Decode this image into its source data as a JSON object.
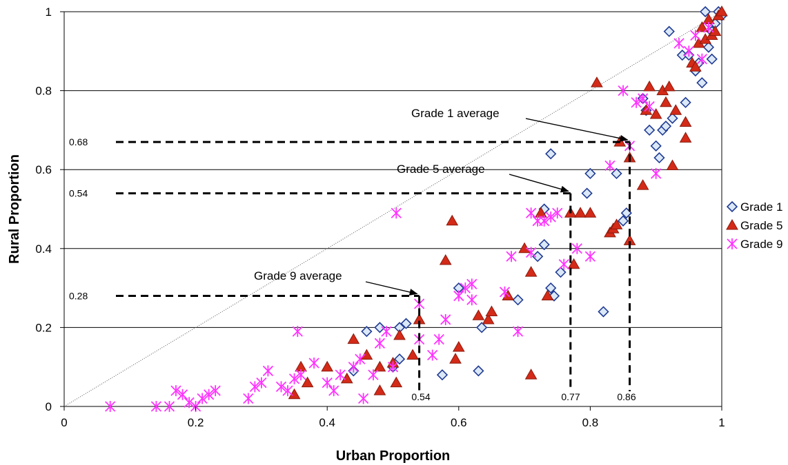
{
  "chart_data": {
    "type": "scatter",
    "xlabel": "Urban Proportion",
    "ylabel": "Rural Proportion",
    "xlim": [
      0,
      1
    ],
    "ylim": [
      0,
      1
    ],
    "xticks": [
      "0",
      "0.2",
      "0.4",
      "0.6",
      "0.8",
      "1"
    ],
    "yticks": [
      "0",
      "0.2",
      "0.4",
      "0.6",
      "0.8",
      "1"
    ],
    "grid": "horizontal",
    "legend_position": "right",
    "diagonal_reference": true,
    "colors": {
      "grade1_edge": "#1f3a93",
      "grade1_fill": "#dbe8f7",
      "grade5_fill": "#d42a18",
      "grade5_edge": "#8b1a0c",
      "grade9": "#ff33ff"
    },
    "series": [
      {
        "name": "Grade 1",
        "marker": "diamond",
        "points": [
          [
            0.44,
            0.09
          ],
          [
            0.46,
            0.19
          ],
          [
            0.48,
            0.2
          ],
          [
            0.51,
            0.2
          ],
          [
            0.52,
            0.21
          ],
          [
            0.5,
            0.1
          ],
          [
            0.51,
            0.12
          ],
          [
            0.575,
            0.08
          ],
          [
            0.6,
            0.3
          ],
          [
            0.635,
            0.2
          ],
          [
            0.63,
            0.09
          ],
          [
            0.69,
            0.27
          ],
          [
            0.72,
            0.38
          ],
          [
            0.73,
            0.41
          ],
          [
            0.73,
            0.5
          ],
          [
            0.74,
            0.3
          ],
          [
            0.745,
            0.28
          ],
          [
            0.755,
            0.34
          ],
          [
            0.74,
            0.64
          ],
          [
            0.795,
            0.54
          ],
          [
            0.8,
            0.59
          ],
          [
            0.82,
            0.24
          ],
          [
            0.84,
            0.59
          ],
          [
            0.85,
            0.47
          ],
          [
            0.855,
            0.49
          ],
          [
            0.88,
            0.78
          ],
          [
            0.885,
            0.75
          ],
          [
            0.89,
            0.7
          ],
          [
            0.9,
            0.66
          ],
          [
            0.905,
            0.63
          ],
          [
            0.91,
            0.7
          ],
          [
            0.915,
            0.71
          ],
          [
            0.925,
            0.73
          ],
          [
            0.92,
            0.95
          ],
          [
            0.945,
            0.77
          ],
          [
            0.94,
            0.89
          ],
          [
            0.95,
            0.89
          ],
          [
            0.96,
            0.85
          ],
          [
            0.965,
            0.87
          ],
          [
            0.97,
            0.82
          ],
          [
            0.975,
            1.0
          ],
          [
            0.98,
            0.91
          ],
          [
            0.985,
            0.88
          ],
          [
            0.99,
            0.97
          ],
          [
            0.995,
            1.0
          ],
          [
            1.0,
            0.99
          ],
          [
            0.985,
            0.95
          ]
        ]
      },
      {
        "name": "Grade 5",
        "marker": "triangle",
        "points": [
          [
            0.35,
            0.03
          ],
          [
            0.36,
            0.1
          ],
          [
            0.37,
            0.06
          ],
          [
            0.4,
            0.1
          ],
          [
            0.43,
            0.07
          ],
          [
            0.44,
            0.17
          ],
          [
            0.46,
            0.13
          ],
          [
            0.48,
            0.04
          ],
          [
            0.48,
            0.1
          ],
          [
            0.5,
            0.11
          ],
          [
            0.505,
            0.06
          ],
          [
            0.51,
            0.18
          ],
          [
            0.53,
            0.13
          ],
          [
            0.54,
            0.22
          ],
          [
            0.58,
            0.37
          ],
          [
            0.59,
            0.47
          ],
          [
            0.595,
            0.12
          ],
          [
            0.6,
            0.15
          ],
          [
            0.63,
            0.23
          ],
          [
            0.645,
            0.22
          ],
          [
            0.65,
            0.24
          ],
          [
            0.675,
            0.28
          ],
          [
            0.7,
            0.4
          ],
          [
            0.71,
            0.08
          ],
          [
            0.71,
            0.34
          ],
          [
            0.725,
            0.49
          ],
          [
            0.735,
            0.28
          ],
          [
            0.77,
            0.49
          ],
          [
            0.775,
            0.36
          ],
          [
            0.785,
            0.49
          ],
          [
            0.8,
            0.49
          ],
          [
            0.81,
            0.82
          ],
          [
            0.83,
            0.44
          ],
          [
            0.835,
            0.45
          ],
          [
            0.84,
            0.46
          ],
          [
            0.845,
            0.67
          ],
          [
            0.86,
            0.42
          ],
          [
            0.86,
            0.63
          ],
          [
            0.88,
            0.56
          ],
          [
            0.885,
            0.75
          ],
          [
            0.89,
            0.81
          ],
          [
            0.9,
            0.74
          ],
          [
            0.91,
            0.8
          ],
          [
            0.915,
            0.77
          ],
          [
            0.92,
            0.81
          ],
          [
            0.925,
            0.61
          ],
          [
            0.93,
            0.75
          ],
          [
            0.945,
            0.68
          ],
          [
            0.945,
            0.72
          ],
          [
            0.955,
            0.87
          ],
          [
            0.96,
            0.86
          ],
          [
            0.965,
            0.92
          ],
          [
            0.97,
            0.96
          ],
          [
            0.975,
            0.93
          ],
          [
            0.98,
            0.98
          ],
          [
            0.985,
            0.94
          ],
          [
            0.99,
            0.95
          ],
          [
            0.995,
            0.99
          ],
          [
            1.0,
            1.0
          ]
        ]
      },
      {
        "name": "Grade 9",
        "marker": "asterisk",
        "points": [
          [
            0.07,
            0.0
          ],
          [
            0.14,
            0.0
          ],
          [
            0.16,
            0.0
          ],
          [
            0.17,
            0.04
          ],
          [
            0.18,
            0.03
          ],
          [
            0.19,
            0.01
          ],
          [
            0.2,
            0.0
          ],
          [
            0.21,
            0.02
          ],
          [
            0.22,
            0.03
          ],
          [
            0.23,
            0.04
          ],
          [
            0.28,
            0.02
          ],
          [
            0.29,
            0.05
          ],
          [
            0.3,
            0.06
          ],
          [
            0.31,
            0.09
          ],
          [
            0.33,
            0.05
          ],
          [
            0.34,
            0.04
          ],
          [
            0.35,
            0.07
          ],
          [
            0.36,
            0.08
          ],
          [
            0.355,
            0.19
          ],
          [
            0.38,
            0.11
          ],
          [
            0.4,
            0.06
          ],
          [
            0.41,
            0.04
          ],
          [
            0.42,
            0.08
          ],
          [
            0.44,
            0.1
          ],
          [
            0.45,
            0.12
          ],
          [
            0.455,
            0.02
          ],
          [
            0.47,
            0.08
          ],
          [
            0.48,
            0.16
          ],
          [
            0.49,
            0.19
          ],
          [
            0.5,
            0.1
          ],
          [
            0.505,
            0.49
          ],
          [
            0.54,
            0.26
          ],
          [
            0.54,
            0.17
          ],
          [
            0.56,
            0.13
          ],
          [
            0.57,
            0.17
          ],
          [
            0.58,
            0.22
          ],
          [
            0.6,
            0.28
          ],
          [
            0.61,
            0.3
          ],
          [
            0.62,
            0.31
          ],
          [
            0.62,
            0.27
          ],
          [
            0.67,
            0.29
          ],
          [
            0.68,
            0.38
          ],
          [
            0.69,
            0.19
          ],
          [
            0.71,
            0.39
          ],
          [
            0.71,
            0.49
          ],
          [
            0.72,
            0.47
          ],
          [
            0.73,
            0.47
          ],
          [
            0.74,
            0.48
          ],
          [
            0.75,
            0.49
          ],
          [
            0.76,
            0.36
          ],
          [
            0.78,
            0.4
          ],
          [
            0.8,
            0.38
          ],
          [
            0.83,
            0.61
          ],
          [
            0.85,
            0.8
          ],
          [
            0.86,
            0.66
          ],
          [
            0.87,
            0.77
          ],
          [
            0.88,
            0.78
          ],
          [
            0.89,
            0.76
          ],
          [
            0.9,
            0.59
          ],
          [
            0.935,
            0.92
          ],
          [
            0.95,
            0.9
          ],
          [
            0.96,
            0.94
          ],
          [
            0.97,
            0.88
          ],
          [
            0.98,
            0.96
          ]
        ]
      }
    ],
    "annotations": [
      {
        "text": "Grade 1 average",
        "x": 0.86,
        "y": 0.67,
        "x_label": "0.86",
        "y_label": "0.68"
      },
      {
        "text": "Grade 5 average",
        "x": 0.77,
        "y": 0.54,
        "x_label": "0.77",
        "y_label": "0.54"
      },
      {
        "text": "Grade 9 average",
        "x": 0.54,
        "y": 0.28,
        "x_label": "0.54",
        "y_label": "0.28"
      }
    ]
  }
}
